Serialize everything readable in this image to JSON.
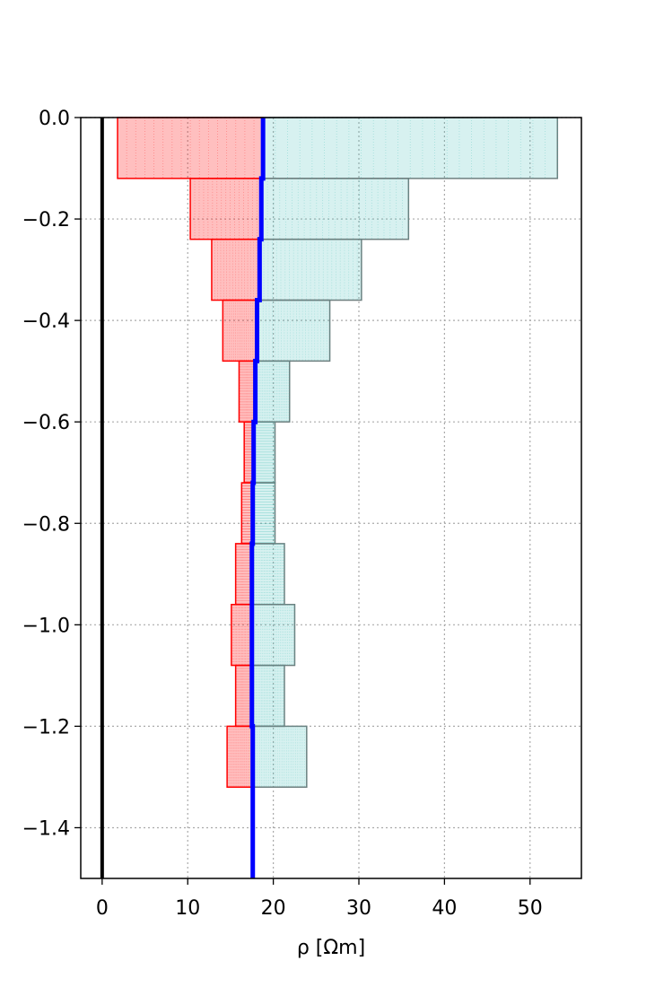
{
  "chart_data": {
    "type": "area",
    "xlabel": "ρ [Ωm]",
    "ylabel": "",
    "xlim": [
      -2.5,
      56
    ],
    "ylim": [
      -1.5,
      0.0
    ],
    "grid": true,
    "x_ticks": [
      0,
      10,
      20,
      30,
      40,
      50
    ],
    "y_ticks": [
      0.0,
      -0.2,
      -0.4,
      -0.6,
      -0.8,
      -1.0,
      -1.2,
      -1.4
    ],
    "x_tick_labels": [
      "0",
      "10",
      "20",
      "30",
      "40",
      "50"
    ],
    "y_tick_labels": [
      "0.0",
      "−0.2",
      "−0.4",
      "−0.6",
      "−0.8",
      "−1.0",
      "−1.2",
      "−1.4"
    ],
    "layers": [
      {
        "top": 0.0,
        "bottom": -0.12,
        "mean": 18.8,
        "lower": 1.8,
        "upper": 53.2
      },
      {
        "top": -0.12,
        "bottom": -0.24,
        "mean": 18.6,
        "lower": 10.3,
        "upper": 35.8
      },
      {
        "top": -0.24,
        "bottom": -0.36,
        "mean": 18.4,
        "lower": 12.8,
        "upper": 30.3
      },
      {
        "top": -0.36,
        "bottom": -0.48,
        "mean": 18.1,
        "lower": 14.1,
        "upper": 26.6
      },
      {
        "top": -0.48,
        "bottom": -0.6,
        "mean": 17.9,
        "lower": 16.0,
        "upper": 21.9
      },
      {
        "top": -0.6,
        "bottom": -0.72,
        "mean": 17.7,
        "lower": 16.6,
        "upper": 20.2
      },
      {
        "top": -0.72,
        "bottom": -0.84,
        "mean": 17.6,
        "lower": 16.3,
        "upper": 20.2
      },
      {
        "top": -0.84,
        "bottom": -0.96,
        "mean": 17.5,
        "lower": 15.6,
        "upper": 21.3
      },
      {
        "top": -0.96,
        "bottom": -1.08,
        "mean": 17.5,
        "lower": 15.1,
        "upper": 22.5
      },
      {
        "top": -1.08,
        "bottom": -1.2,
        "mean": 17.5,
        "lower": 15.6,
        "upper": 21.3
      },
      {
        "top": -1.2,
        "bottom": -1.32,
        "mean": 17.6,
        "lower": 14.6,
        "upper": 23.9
      }
    ],
    "halfspace": {
      "top": -1.32,
      "mean": 17.6
    },
    "reference_line": {
      "x": 0,
      "color": "#000000"
    },
    "colors": {
      "lower_band": "#ff0000",
      "upper_band": "#20b2aa",
      "mean": "#0000ff",
      "grid": "#aaaaaa"
    }
  }
}
